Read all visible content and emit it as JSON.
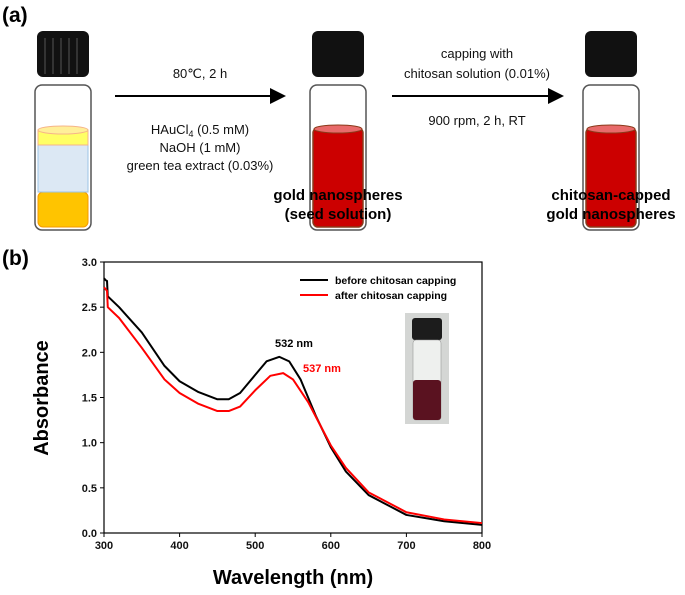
{
  "panel_a": {
    "label": "(a)",
    "step1": {
      "top": "80℃, 2 h",
      "reagents": [
        "HAuCl",
        "(0.5 mM)",
        "NaOH (1 mM)",
        "green tea extract (0.03%)"
      ],
      "subscript": "4"
    },
    "step2": {
      "top": [
        "capping with",
        "chitosan solution (0.01%)"
      ],
      "bottom": "900 rpm, 2 h, RT"
    },
    "product1": [
      "gold nanospheres",
      "(seed solution)"
    ],
    "product2": [
      "chitosan-capped",
      "gold nanospheres"
    ],
    "colors": {
      "red_solution": "#cc0000",
      "yellow_layer": "#ffff66",
      "blue_layer": "#dce8f4",
      "orange_layer": "#ffc400",
      "cap": "#111111"
    }
  },
  "panel_b": {
    "label": "(b)"
  },
  "chart_data": {
    "type": "line",
    "title": "",
    "xlabel": "Wavelength (nm)",
    "ylabel": "Absorbance",
    "xlim": [
      300,
      800
    ],
    "ylim": [
      0.0,
      3.0
    ],
    "xticks": [
      "300",
      "400",
      "500",
      "600",
      "700",
      "800"
    ],
    "yticks": [
      "0.0",
      "0.5",
      "1.0",
      "1.5",
      "2.0",
      "2.5",
      "3.0"
    ],
    "legend_position": "top-right",
    "grid": false,
    "series": [
      {
        "name": "before chitosan capping",
        "color": "#000000",
        "x": [
          300,
          302,
          304,
          305,
          320,
          350,
          380,
          400,
          425,
          450,
          465,
          480,
          500,
          515,
          532,
          545,
          560,
          580,
          600,
          620,
          650,
          700,
          750,
          800
        ],
        "y": [
          2.82,
          2.8,
          2.79,
          2.62,
          2.5,
          2.22,
          1.85,
          1.68,
          1.56,
          1.48,
          1.48,
          1.55,
          1.75,
          1.9,
          1.95,
          1.9,
          1.7,
          1.3,
          0.95,
          0.68,
          0.42,
          0.2,
          0.13,
          0.09
        ]
      },
      {
        "name": "after chitosan capping",
        "color": "#ff0000",
        "x": [
          300,
          304,
          305,
          320,
          350,
          380,
          400,
          425,
          450,
          465,
          480,
          500,
          520,
          537,
          550,
          570,
          600,
          620,
          650,
          700,
          750,
          800
        ],
        "y": [
          2.72,
          2.68,
          2.5,
          2.38,
          2.05,
          1.7,
          1.55,
          1.43,
          1.35,
          1.35,
          1.4,
          1.58,
          1.74,
          1.77,
          1.7,
          1.45,
          0.97,
          0.72,
          0.45,
          0.23,
          0.15,
          0.11
        ]
      }
    ],
    "annotations": [
      {
        "text": "532 nm",
        "color": "#000000"
      },
      {
        "text": "537 nm",
        "color": "#ff0000"
      }
    ]
  }
}
